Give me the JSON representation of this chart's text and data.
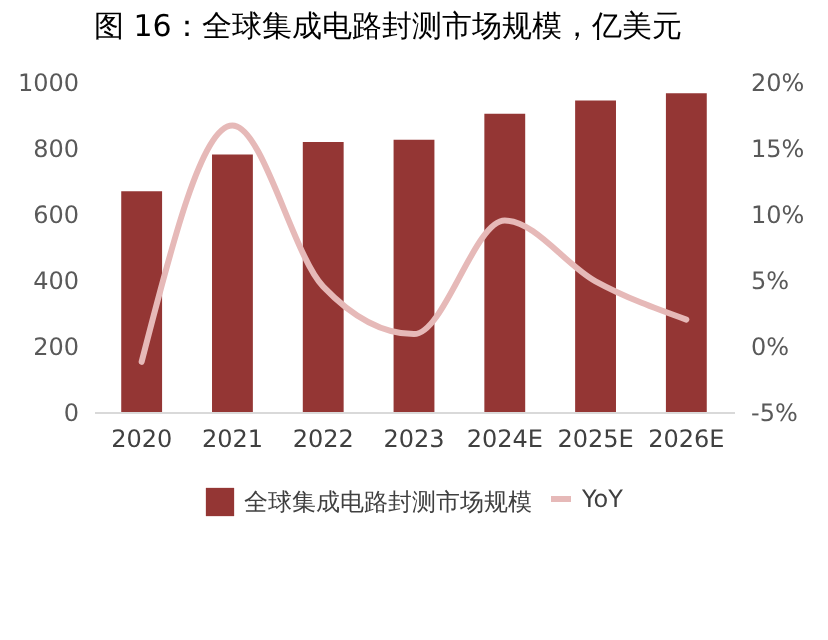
{
  "chart_data": {
    "type": "bar",
    "title": "图 16：全球集成电路封测市场规模，亿美元",
    "categories": [
      "2020",
      "2021",
      "2022",
      "2023",
      "2024E",
      "2025E",
      "2026E"
    ],
    "series": [
      {
        "name": "全球集成电路封测市场规模",
        "color": "#943634",
        "values": [
          669,
          780,
          818,
          825,
          904,
          944,
          966
        ]
      },
      {
        "name": "YoY",
        "type": "line",
        "axis": "y2",
        "color": "#e6b9b8",
        "values": [
          -1.2,
          16.7,
          4.5,
          0.9,
          9.5,
          4.9,
          2.0
        ]
      }
    ],
    "ylim": [
      0,
      1000
    ],
    "yticks": [
      0,
      200,
      400,
      600,
      800,
      1000
    ],
    "y2lim": [
      -5,
      20
    ],
    "y2ticks": [
      {
        "value": -5,
        "label": "-5%"
      },
      {
        "value": 0,
        "label": "0%"
      },
      {
        "value": 5,
        "label": "5%"
      },
      {
        "value": 10,
        "label": "10%"
      },
      {
        "value": 15,
        "label": "15%"
      },
      {
        "value": 20,
        "label": "20%"
      }
    ],
    "grid": false,
    "legend": "bottom",
    "marker": "none",
    "line_style": "solid"
  }
}
